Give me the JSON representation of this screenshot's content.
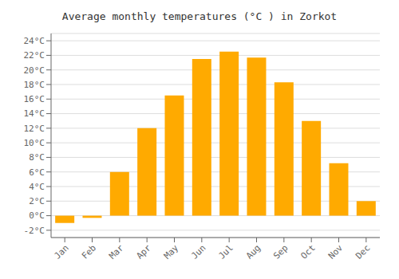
{
  "chart_data": {
    "type": "bar",
    "title": "Average monthly temperatures (°C ) in Zorkot",
    "categories": [
      "Jan",
      "Feb",
      "Mar",
      "Apr",
      "May",
      "Jun",
      "Jul",
      "Aug",
      "Sep",
      "Oct",
      "Nov",
      "Dec"
    ],
    "values": [
      -1.0,
      -0.3,
      6.0,
      12.0,
      16.5,
      21.5,
      22.5,
      21.7,
      18.3,
      13.0,
      7.2,
      2.0
    ],
    "color": "#FFAA00",
    "ylim": [
      -3,
      25
    ],
    "yticks": [
      {
        "value": -2,
        "label": "-2°C"
      },
      {
        "value": 0,
        "label": "0°C"
      },
      {
        "value": 2,
        "label": "2°C"
      },
      {
        "value": 4,
        "label": "4°C"
      },
      {
        "value": 6,
        "label": "6°C"
      },
      {
        "value": 8,
        "label": "8°C"
      },
      {
        "value": 10,
        "label": "10°C"
      },
      {
        "value": 12,
        "label": "12°C"
      },
      {
        "value": 14,
        "label": "14°C"
      },
      {
        "value": 16,
        "label": "16°C"
      },
      {
        "value": 18,
        "label": "18°C"
      },
      {
        "value": 20,
        "label": "20°C"
      },
      {
        "value": 22,
        "label": "22°C"
      },
      {
        "value": 24,
        "label": "24°C"
      }
    ],
    "grid": true
  }
}
